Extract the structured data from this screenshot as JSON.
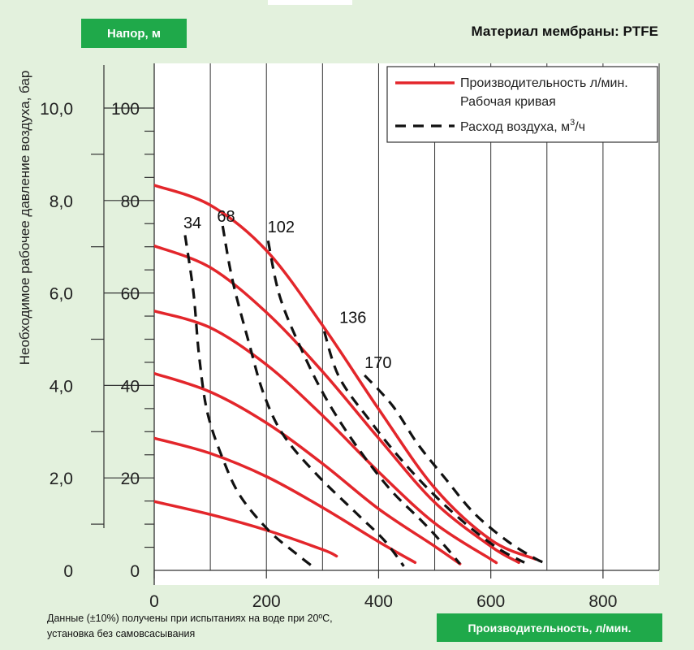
{
  "header": {
    "head_badge": "Напор, м",
    "material": "Материал мембраны: PTFE"
  },
  "footer": {
    "note_line1": "Данные (±10%) получены при испытаниях на воде при 20ºC,",
    "note_line2": "установка без самовсасывания",
    "flow_badge": "Производительность, л/мин."
  },
  "colors": {
    "background": "#e3f1dd",
    "badge": "#1fa94a",
    "performance": "#e3262b",
    "air": "#111111"
  },
  "chart_data": {
    "type": "line",
    "title": "",
    "xlabel": "Производительность, л/мин.",
    "ylabel": "Напор, м",
    "y2label": "Необходимое рабочее давление воздуха, бар",
    "xlim": [
      0,
      900
    ],
    "ylim": [
      0,
      100
    ],
    "y2lim": [
      0,
      10
    ],
    "x_ticks": [
      "0",
      "200",
      "400",
      "600",
      "800"
    ],
    "y_ticks": [
      "0",
      "20",
      "40",
      "60",
      "80",
      "100"
    ],
    "y2_ticks": [
      "0",
      "2,0",
      "4,0",
      "6,0",
      "8,0",
      "10,0"
    ],
    "grid": true,
    "legend": {
      "position": "top-right",
      "performance_line1": "Производительность л/мин.",
      "performance_line2": "Рабочая кривая",
      "air_prefix": "Расход воздуха, м",
      "air_sup": "3",
      "air_suffix": "/ч"
    },
    "performance_curves": [
      {
        "air_bar": 1.5,
        "points": [
          [
            0,
            14.9
          ],
          [
            100,
            12.1
          ],
          [
            200,
            8.7
          ],
          [
            300,
            4.5
          ],
          [
            325,
            3.1
          ]
        ]
      },
      {
        "air_bar": 2.9,
        "points": [
          [
            0,
            28.6
          ],
          [
            100,
            25.3
          ],
          [
            200,
            20.3
          ],
          [
            300,
            13.6
          ],
          [
            400,
            6.2
          ],
          [
            465,
            1.7
          ]
        ]
      },
      {
        "air_bar": 4.3,
        "points": [
          [
            0,
            42.6
          ],
          [
            100,
            38.6
          ],
          [
            200,
            31.9
          ],
          [
            300,
            23.1
          ],
          [
            400,
            13.3
          ],
          [
            500,
            5.2
          ],
          [
            545,
            1.4
          ]
        ]
      },
      {
        "air_bar": 5.6,
        "points": [
          [
            0,
            56.1
          ],
          [
            100,
            52.5
          ],
          [
            200,
            44.5
          ],
          [
            300,
            33.5
          ],
          [
            400,
            21.3
          ],
          [
            500,
            10.2
          ],
          [
            600,
            2.4
          ],
          [
            607,
            1.9
          ]
        ]
      },
      {
        "air_bar": 7.0,
        "points": [
          [
            0,
            70.2
          ],
          [
            100,
            65.5
          ],
          [
            200,
            55.8
          ],
          [
            300,
            43.0
          ],
          [
            400,
            28.6
          ],
          [
            500,
            14.7
          ],
          [
            600,
            5.2
          ],
          [
            650,
            1.7
          ]
        ]
      },
      {
        "air_bar": 8.3,
        "points": [
          [
            0,
            83.3
          ],
          [
            100,
            79.0
          ],
          [
            200,
            69.2
          ],
          [
            300,
            53.0
          ],
          [
            400,
            34.9
          ],
          [
            500,
            17.8
          ],
          [
            600,
            6.6
          ],
          [
            680,
            2.4
          ]
        ]
      }
    ],
    "air_curves": [
      {
        "label": "34",
        "points": [
          [
            55,
            72.5
          ],
          [
            70,
            60.0
          ],
          [
            80,
            46.4
          ],
          [
            95,
            34.0
          ],
          [
            125,
            23.3
          ],
          [
            155,
            15.8
          ],
          [
            205,
            8.5
          ],
          [
            250,
            3.9
          ],
          [
            285,
            0.6
          ]
        ]
      },
      {
        "label": "68",
        "points": [
          [
            122,
            74.5
          ],
          [
            140,
            62.5
          ],
          [
            170,
            48.7
          ],
          [
            195,
            38.2
          ],
          [
            230,
            29.3
          ],
          [
            290,
            20.7
          ],
          [
            360,
            12.4
          ],
          [
            410,
            6.5
          ],
          [
            445,
            0.9
          ]
        ]
      },
      {
        "label": "102",
        "points": [
          [
            203,
            71.3
          ],
          [
            225,
            58.8
          ],
          [
            270,
            45.8
          ],
          [
            310,
            36.4
          ],
          [
            360,
            27.0
          ],
          [
            420,
            17.6
          ],
          [
            480,
            10.3
          ],
          [
            520,
            5.0
          ],
          [
            545,
            1.4
          ]
        ]
      },
      {
        "label": "136",
        "points": [
          [
            303,
            51.7
          ],
          [
            330,
            41.7
          ],
          [
            385,
            32.3
          ],
          [
            440,
            24.0
          ],
          [
            500,
            16.2
          ],
          [
            560,
            9.6
          ],
          [
            615,
            4.6
          ],
          [
            660,
            1.7
          ]
        ]
      },
      {
        "label": "170",
        "points": [
          [
            375,
            42.2
          ],
          [
            425,
            35.6
          ],
          [
            470,
            27.3
          ],
          [
            520,
            19.7
          ],
          [
            570,
            12.4
          ],
          [
            630,
            6.3
          ],
          [
            680,
            2.5
          ],
          [
            700,
            1.5
          ]
        ]
      }
    ],
    "curve_labels": [
      {
        "text": "34",
        "x": 52,
        "y": 74.0
      },
      {
        "text": "68",
        "x": 112,
        "y": 75.4
      },
      {
        "text": "102",
        "x": 202,
        "y": 73.1
      },
      {
        "text": "136",
        "x": 330,
        "y": 53.5
      },
      {
        "text": "170",
        "x": 375,
        "y": 43.8
      }
    ]
  }
}
